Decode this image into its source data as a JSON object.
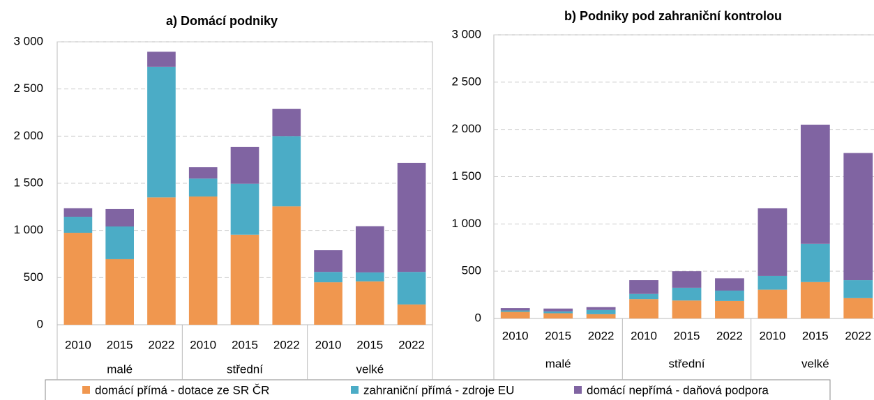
{
  "chart_data": [
    {
      "type": "bar",
      "stacked": true,
      "title": "a) Domácí podniky",
      "categories": [
        "2010",
        "2015",
        "2022",
        "2010",
        "2015",
        "2022",
        "2010",
        "2015",
        "2022"
      ],
      "groups": [
        "malé",
        "střední",
        "velké"
      ],
      "ylim": [
        0,
        3000
      ],
      "yticks": [
        0,
        500,
        {
          "value": 1000,
          "label": "1 000"
        },
        {
          "value": 1500,
          "label": "1 500"
        },
        {
          "value": 2000,
          "label": "2 000"
        },
        {
          "value": 2500,
          "label": "2 500"
        },
        {
          "value": 3000,
          "label": "3 000"
        }
      ],
      "grid": true,
      "series": [
        {
          "name": "domácí přímá - dotace ze SR ČR",
          "color": "#f0974f",
          "values": [
            975,
            695,
            1350,
            1360,
            955,
            1255,
            450,
            460,
            215
          ]
        },
        {
          "name": "zahraniční přímá - zdroje EU",
          "color": "#4bacc6",
          "values": [
            170,
            347,
            1385,
            190,
            540,
            745,
            110,
            95,
            345
          ]
        },
        {
          "name": "domácí nepřímá - daňová podpora",
          "color": "#8064a2",
          "values": [
            90,
            185,
            160,
            120,
            390,
            290,
            230,
            490,
            1155
          ]
        }
      ]
    },
    {
      "type": "bar",
      "stacked": true,
      "title": "b) Podniky pod zahraniční kontrolou",
      "categories": [
        "2010",
        "2015",
        "2022",
        "2010",
        "2015",
        "2022",
        "2010",
        "2015",
        "2022"
      ],
      "groups": [
        "malé",
        "střední",
        "velké"
      ],
      "ylim": [
        0,
        3000
      ],
      "yticks": [
        0,
        500,
        {
          "value": 1000,
          "label": "1 000"
        },
        {
          "value": 1500,
          "label": "1 500"
        },
        {
          "value": 2000,
          "label": "2 000"
        },
        {
          "value": 2500,
          "label": "2 500"
        },
        {
          "value": 3000,
          "label": "3 000"
        }
      ],
      "grid": true,
      "series": [
        {
          "color": "#f0974f",
          "values": [
            70,
            55,
            45,
            205,
            190,
            185,
            305,
            385,
            215
          ]
        },
        {
          "color": "#4bacc6",
          "values": [
            15,
            20,
            45,
            55,
            135,
            110,
            145,
            405,
            190
          ]
        },
        {
          "color": "#8064a2",
          "values": [
            25,
            30,
            30,
            145,
            175,
            130,
            715,
            1260,
            1345
          ]
        }
      ]
    }
  ]
}
